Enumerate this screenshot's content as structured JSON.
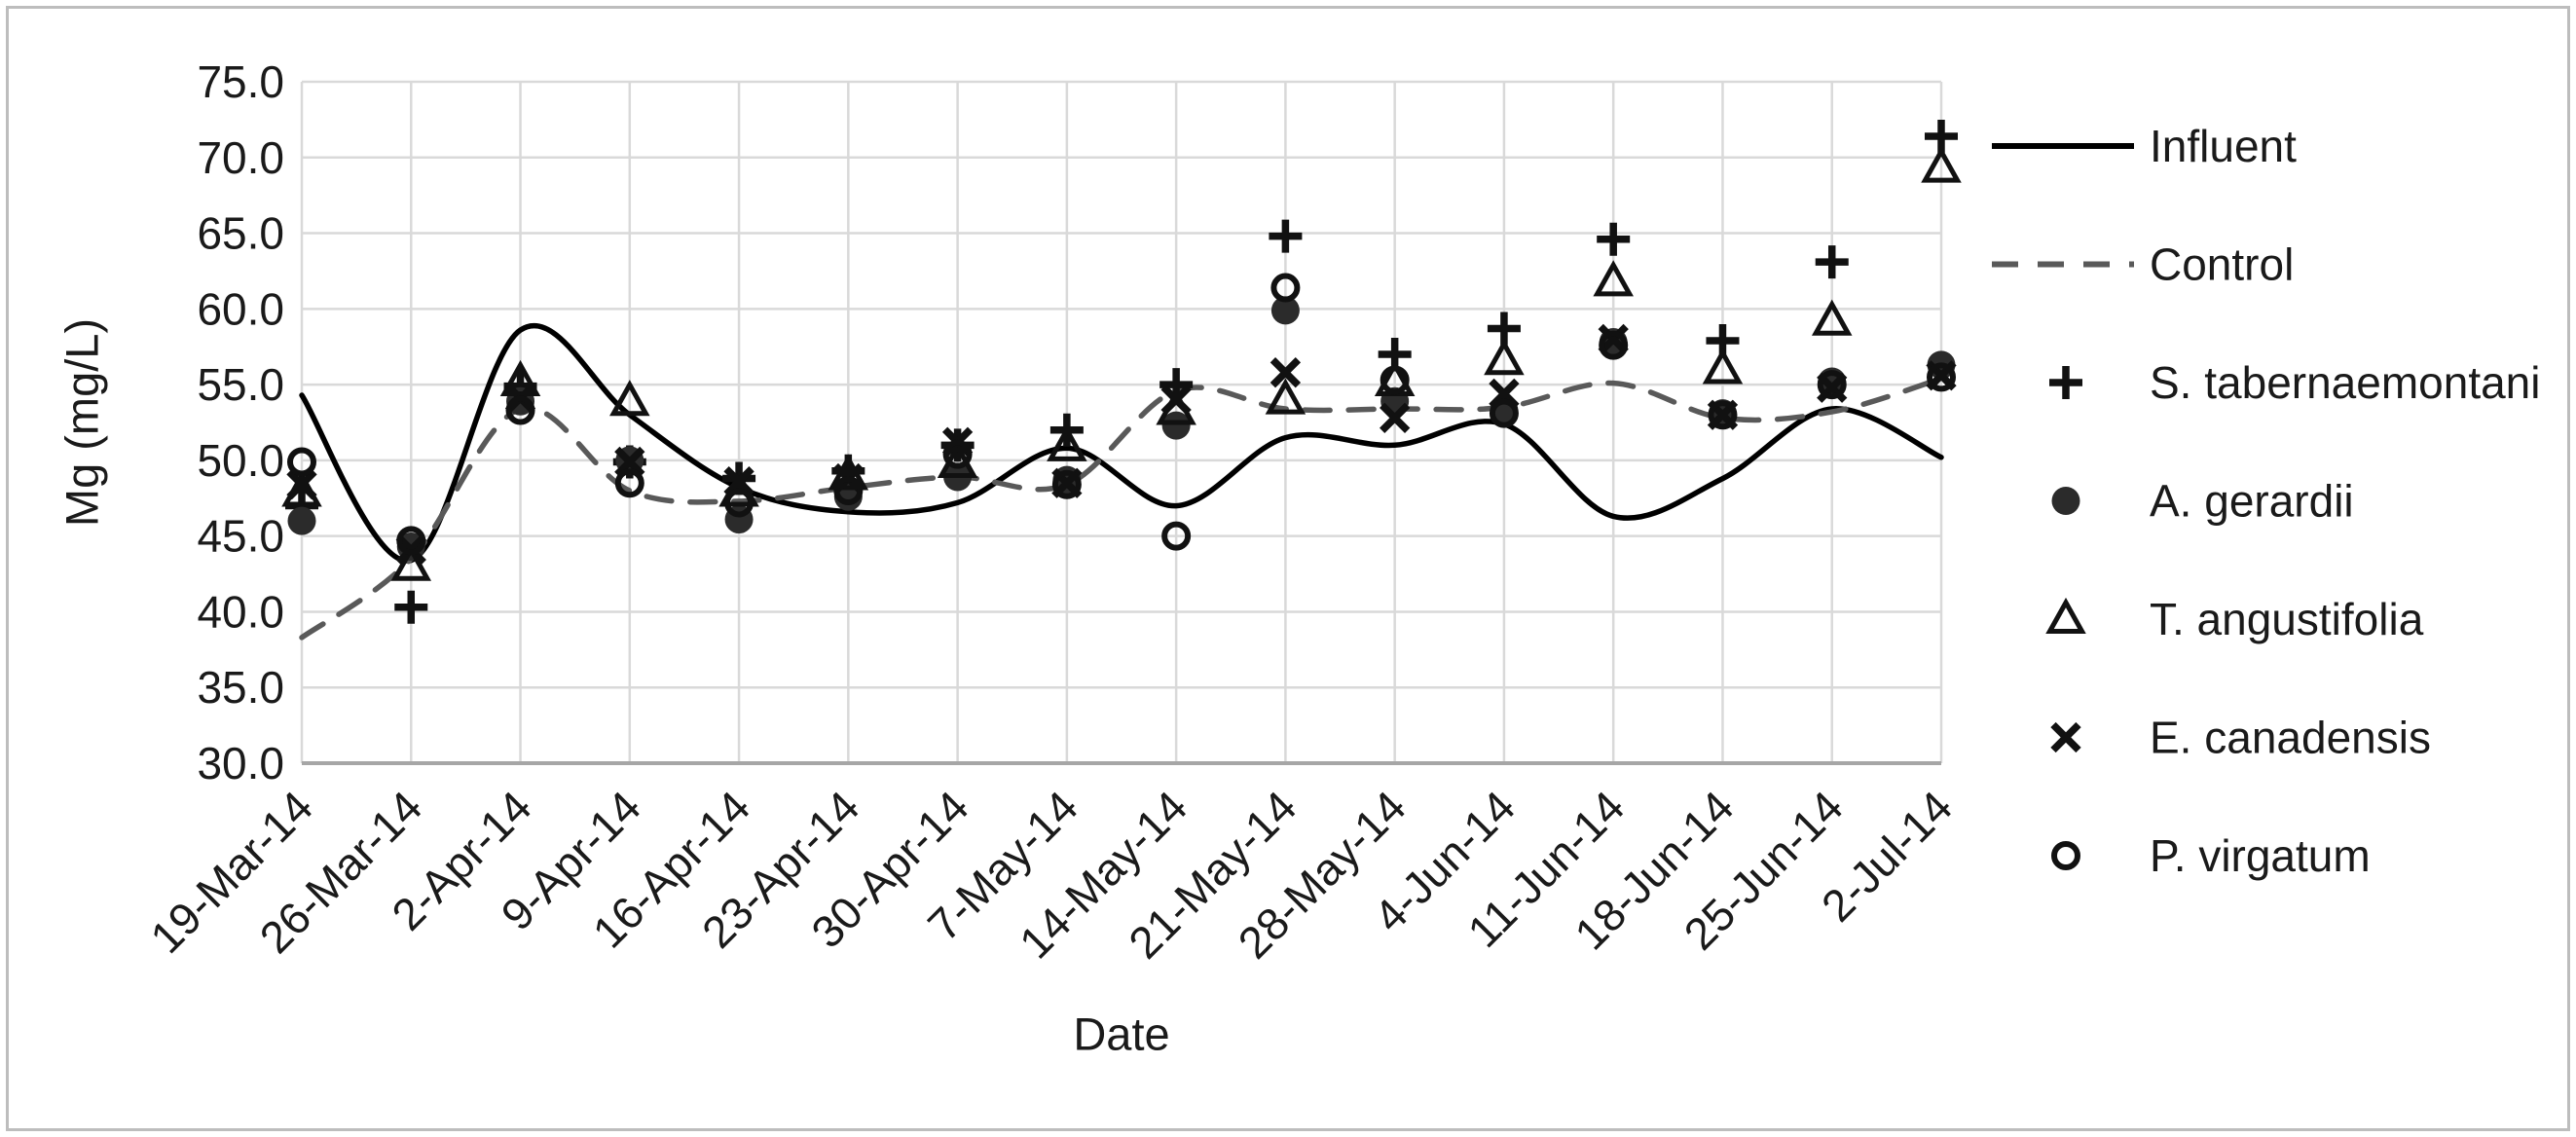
{
  "chart_data": {
    "type": "line",
    "title": "",
    "xlabel": "Date",
    "ylabel": "Mg (mg/L)",
    "ylim": [
      30.0,
      75.0
    ],
    "ytick_step": 5.0,
    "yticks": [
      "75.0",
      "70.0",
      "65.0",
      "60.0",
      "55.0",
      "50.0",
      "45.0",
      "40.0",
      "35.0",
      "30.0"
    ],
    "grid": true,
    "legend_position": "right",
    "categories": [
      "19-Mar-14",
      "26-Mar-14",
      "2-Apr-14",
      "9-Apr-14",
      "16-Apr-14",
      "23-Apr-14",
      "30-Apr-14",
      "7-May-14",
      "14-May-14",
      "21-May-14",
      "28-May-14",
      "4-Jun-14",
      "11-Jun-14",
      "18-Jun-14",
      "25-Jun-14",
      "2-Jul-14"
    ],
    "series": [
      {
        "name": "Influent",
        "kind": "line",
        "line_style": "solid",
        "smooth": true,
        "color": "#000000",
        "values": [
          54.3,
          43.4,
          58.6,
          53.0,
          48.2,
          46.6,
          47.2,
          50.8,
          47.0,
          51.5,
          51.0,
          52.4,
          46.3,
          48.8,
          53.4,
          50.2
        ]
      },
      {
        "name": "Control",
        "kind": "line",
        "line_style": "dashed",
        "smooth": true,
        "color": "#595959",
        "values": [
          38.3,
          43.5,
          53.4,
          48.0,
          47.3,
          48.2,
          48.9,
          48.4,
          54.6,
          53.4,
          53.4,
          53.5,
          55.1,
          52.8,
          53.2,
          55.4
        ]
      },
      {
        "name": "S. tabernaemontani",
        "kind": "scatter",
        "marker": "plus",
        "color": "#111111",
        "values": [
          47.0,
          40.3,
          54.9,
          49.9,
          48.8,
          49.3,
          51.0,
          52.0,
          55.0,
          64.8,
          57.0,
          58.7,
          64.6,
          57.9,
          63.1,
          71.4
        ]
      },
      {
        "name": "A. gerardii",
        "kind": "scatter",
        "marker": "filled-circle",
        "color": "#2b2b2b",
        "values": [
          46.0,
          44.3,
          53.9,
          50.0,
          46.1,
          47.6,
          48.9,
          48.7,
          52.3,
          59.9,
          53.9,
          53.3,
          57.8,
          53.1,
          55.2,
          56.3
        ]
      },
      {
        "name": "T. angustifolia",
        "kind": "scatter",
        "marker": "open-triangle",
        "color": "#111111",
        "values": [
          47.9,
          43.0,
          55.2,
          53.9,
          47.9,
          49.0,
          49.8,
          50.9,
          53.3,
          54.0,
          55.2,
          56.6,
          61.8,
          56.0,
          59.2,
          69.3
        ]
      },
      {
        "name": "E. canadensis",
        "kind": "scatter",
        "marker": "x",
        "color": "#111111",
        "values": [
          48.4,
          44.1,
          54.1,
          49.9,
          48.6,
          48.8,
          51.2,
          48.5,
          54.0,
          55.8,
          52.8,
          54.4,
          58.0,
          53.0,
          54.8,
          55.6
        ]
      },
      {
        "name": "P. virgatum",
        "kind": "scatter",
        "marker": "open-circle",
        "color": "#111111",
        "values": [
          49.9,
          44.7,
          53.3,
          48.5,
          47.2,
          48.0,
          50.4,
          48.4,
          45.0,
          61.4,
          55.3,
          53.1,
          57.6,
          53.0,
          55.0,
          55.5
        ]
      }
    ],
    "colors": {
      "gridline": "#d9d9d9",
      "axis_line": "#a6a6a6",
      "text": "#1a1a1a"
    }
  }
}
